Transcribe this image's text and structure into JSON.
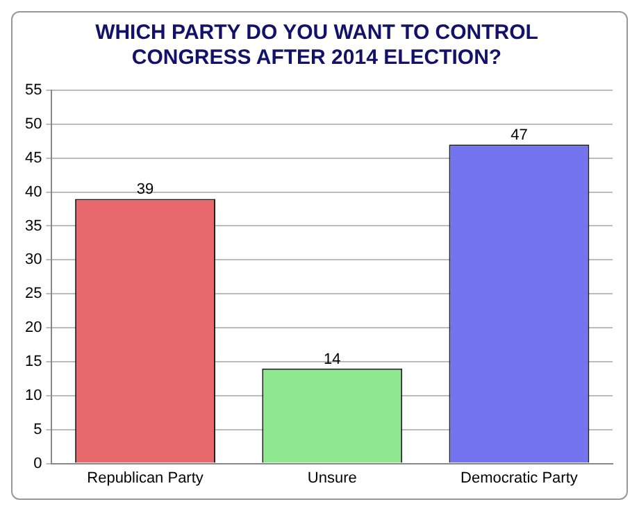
{
  "chart_data": {
    "type": "bar",
    "title": [
      "WHICH PARTY DO YOU WANT TO CONTROL",
      "CONGRESS AFTER 2014 ELECTION?"
    ],
    "categories": [
      "Republican Party",
      "Unsure",
      "Democratic Party"
    ],
    "values": [
      39,
      14,
      47
    ],
    "colors": [
      "#e8696b",
      "#8fe88f",
      "#7474ee"
    ],
    "ylim": [
      0,
      55
    ],
    "yticks": [
      0,
      5,
      10,
      15,
      20,
      25,
      30,
      35,
      40,
      45,
      50,
      55
    ],
    "grid": "y",
    "data_labels": true,
    "legend": false
  }
}
